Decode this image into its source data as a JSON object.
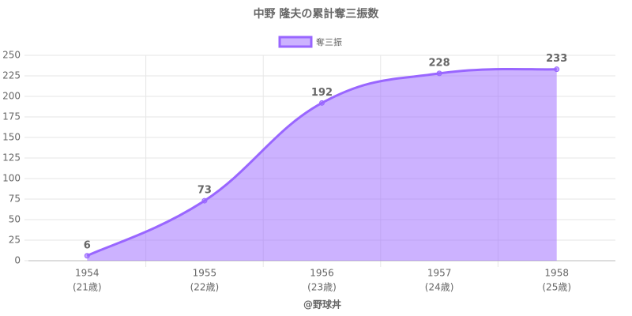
{
  "chart_data": {
    "type": "area",
    "title": "中野 隆夫の累計奪三振数",
    "x_label": "@野球丼",
    "categories": [
      "1954",
      "1955",
      "1956",
      "1957",
      "1958"
    ],
    "category_notes": [
      "(21歳)",
      "(22歳)",
      "(23歳)",
      "(24歳)",
      "(25歳)"
    ],
    "series": [
      {
        "name": "奪三振",
        "color": "#9966ff",
        "values": [
          6,
          73,
          192,
          228,
          233
        ]
      }
    ],
    "ylim": [
      0,
      250
    ],
    "yticks": [
      0,
      25,
      50,
      75,
      100,
      125,
      150,
      175,
      200,
      225,
      250
    ],
    "grid": true,
    "legend": "top"
  }
}
